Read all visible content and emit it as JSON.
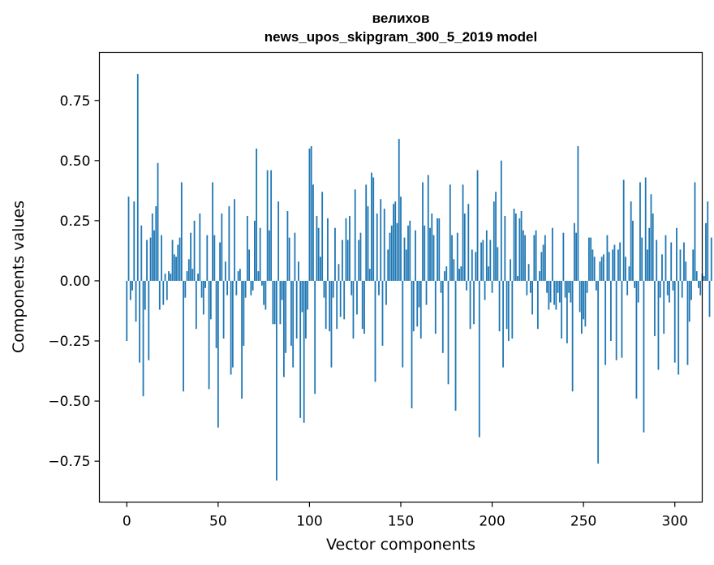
{
  "chart_data": {
    "type": "bar",
    "title": "велихов",
    "subtitle": "news_upos_skipgram_300_5_2019 model",
    "xlabel": "Vector components",
    "ylabel": "Components values",
    "xlim": [
      -15,
      315
    ],
    "ylim": [
      -0.92,
      0.95
    ],
    "xticks": [
      0,
      50,
      100,
      150,
      200,
      250,
      300
    ],
    "yticks": [
      -0.75,
      -0.5,
      -0.25,
      0.0,
      0.25,
      0.5,
      0.75
    ],
    "ytick_labels": [
      "−0.75",
      "−0.50",
      "−0.25",
      "0.00",
      "0.25",
      "0.50",
      "0.75"
    ],
    "bar_color": "#1f77b4",
    "grid": false,
    "values": [
      -0.25,
      0.35,
      -0.08,
      -0.04,
      0.33,
      -0.17,
      0.86,
      -0.34,
      0.23,
      -0.48,
      -0.12,
      0.17,
      -0.33,
      0.18,
      0.28,
      0.21,
      0.31,
      0.49,
      -0.12,
      0.19,
      -0.1,
      0.03,
      -0.08,
      0.04,
      0.03,
      0.17,
      0.11,
      0.1,
      0.15,
      0.18,
      0.41,
      -0.46,
      -0.07,
      0.04,
      0.09,
      0.2,
      0.05,
      0.25,
      -0.2,
      0.03,
      0.28,
      -0.07,
      -0.14,
      -0.03,
      0.19,
      -0.45,
      -0.16,
      0.41,
      0.19,
      -0.28,
      -0.61,
      0.16,
      0.28,
      -0.24,
      0.08,
      -0.06,
      0.31,
      -0.39,
      -0.36,
      0.34,
      -0.06,
      0.04,
      0.05,
      -0.49,
      -0.27,
      -0.07,
      0.27,
      0.13,
      -0.06,
      -0.04,
      0.25,
      0.55,
      0.04,
      0.22,
      -0.02,
      -0.1,
      -0.12,
      0.46,
      0.21,
      0.46,
      -0.18,
      -0.18,
      -0.83,
      0.33,
      -0.18,
      -0.08,
      -0.4,
      -0.3,
      0.29,
      0.18,
      -0.27,
      -0.36,
      0.2,
      -0.24,
      0.08,
      -0.57,
      -0.13,
      -0.59,
      -0.24,
      -0.12,
      0.55,
      0.56,
      0.4,
      -0.47,
      0.27,
      0.22,
      0.1,
      0.37,
      -0.07,
      -0.2,
      0.26,
      -0.21,
      -0.36,
      -0.07,
      0.22,
      -0.2,
      0.07,
      -0.15,
      0.17,
      -0.16,
      0.26,
      0.17,
      0.27,
      -0.06,
      -0.24,
      0.38,
      -0.14,
      0.17,
      0.2,
      -0.2,
      -0.22,
      0.4,
      0.31,
      0.05,
      0.45,
      0.43,
      -0.42,
      0.28,
      -0.06,
      0.34,
      -0.27,
      0.3,
      -0.1,
      0.13,
      0.2,
      0.23,
      0.32,
      0.33,
      0.24,
      0.59,
      0.35,
      -0.36,
      0.18,
      0.13,
      0.23,
      0.25,
      -0.53,
      -0.21,
      0.21,
      -0.19,
      -0.11,
      -0.24,
      0.41,
      0.23,
      -0.1,
      0.44,
      0.22,
      0.28,
      0.19,
      -0.22,
      0.26,
      0.26,
      -0.05,
      -0.3,
      0.04,
      0.06,
      -0.43,
      0.4,
      0.19,
      0.09,
      -0.54,
      0.2,
      0.05,
      0.06,
      0.4,
      0.28,
      -0.04,
      0.32,
      -0.2,
      0.13,
      -0.18,
      0.12,
      0.46,
      -0.65,
      0.16,
      0.17,
      -0.08,
      0.21,
      0.06,
      0.17,
      -0.05,
      0.33,
      0.37,
      0.14,
      -0.21,
      0.5,
      -0.36,
      0.27,
      -0.2,
      -0.25,
      0.09,
      -0.24,
      0.3,
      0.28,
      0.02,
      0.26,
      0.29,
      0.21,
      0.19,
      -0.06,
      0.07,
      -0.05,
      -0.14,
      0.19,
      0.21,
      -0.2,
      0.04,
      0.12,
      0.15,
      0.19,
      -0.05,
      -0.12,
      -0.09,
      0.22,
      -0.1,
      -0.12,
      -0.05,
      -0.09,
      -0.24,
      0.2,
      -0.07,
      -0.26,
      -0.05,
      -0.09,
      -0.46,
      0.24,
      0.2,
      0.56,
      -0.13,
      -0.22,
      -0.16,
      -0.19,
      -0.05,
      0.18,
      0.18,
      0.13,
      0.1,
      -0.04,
      -0.76,
      0.08,
      0.1,
      0.11,
      -0.35,
      0.19,
      0.12,
      -0.25,
      0.13,
      0.15,
      -0.33,
      0.13,
      0.16,
      -0.32,
      0.42,
      0.1,
      -0.06,
      0.06,
      0.33,
      0.25,
      -0.03,
      -0.49,
      -0.09,
      0.41,
      0.18,
      -0.63,
      0.43,
      0.13,
      0.22,
      0.36,
      0.28,
      -0.23,
      0.17,
      -0.37,
      -0.07,
      0.11,
      -0.22,
      0.19,
      -0.06,
      -0.09,
      0.16,
      -0.04,
      -0.34,
      0.22,
      -0.39,
      0.13,
      -0.07,
      0.16,
      0.08,
      -0.35,
      -0.17,
      -0.08,
      0.13,
      0.41,
      0.04,
      -0.03,
      -0.06,
      0.03,
      0.02,
      0.24,
      0.33,
      -0.15,
      0.18
    ]
  }
}
